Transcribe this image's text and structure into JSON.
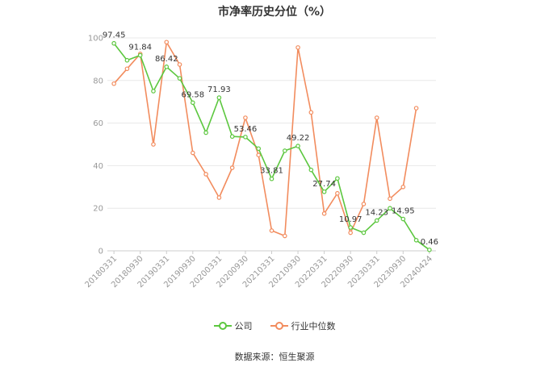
{
  "title": "市净率历史分位（%）",
  "source": "数据来源：恒生聚源",
  "colors": {
    "company": "#5cc73f",
    "median": "#f28c5e",
    "grid": "#e8e8e8",
    "axis": "#cccccc"
  },
  "chart_data": {
    "type": "line",
    "title": "市净率历史分位（%）",
    "ylim": [
      0,
      100
    ],
    "yticks": [
      0,
      20,
      40,
      60,
      80,
      100
    ],
    "xlabels": [
      "20180331",
      "20180930",
      "20190331",
      "20190930",
      "20200331",
      "20200930",
      "20210331",
      "20210930",
      "20220331",
      "20220930",
      "20230331",
      "20230930",
      "20240424"
    ],
    "xlabel_index": [
      0,
      2,
      4,
      6,
      8,
      10,
      12,
      14,
      16,
      18,
      20,
      22,
      24
    ],
    "grid": true,
    "legend_position": "bottom",
    "series": [
      {
        "name": "公司",
        "color": "#5cc73f",
        "values": [
          97.45,
          89.5,
          91.84,
          75.0,
          86.42,
          81.0,
          69.58,
          55.5,
          71.93,
          53.7,
          53.46,
          48.0,
          33.81,
          47.0,
          49.22,
          38.0,
          27.74,
          34.0,
          10.97,
          8.5,
          14.23,
          20.0,
          14.95,
          5.0,
          0.46
        ],
        "labels": {
          "0": "97.45",
          "2": "91.84",
          "4": "86.42",
          "6": "69.58",
          "8": "71.93",
          "10": "53.46",
          "12": "33.81",
          "14": "49.22",
          "16": "27.74",
          "18": "10.97",
          "20": "14.23",
          "22": "14.95",
          "24": "0.46"
        }
      },
      {
        "name": "行业中位数",
        "color": "#f28c5e",
        "values": [
          78.5,
          85.5,
          92.5,
          50.0,
          98.0,
          87.5,
          46.0,
          36.0,
          25.0,
          39.0,
          62.5,
          45.0,
          9.5,
          7.0,
          95.5,
          65.0,
          17.5,
          27.0,
          8.5,
          22.0,
          62.5,
          24.5,
          30.0,
          67.0,
          null
        ]
      }
    ]
  }
}
